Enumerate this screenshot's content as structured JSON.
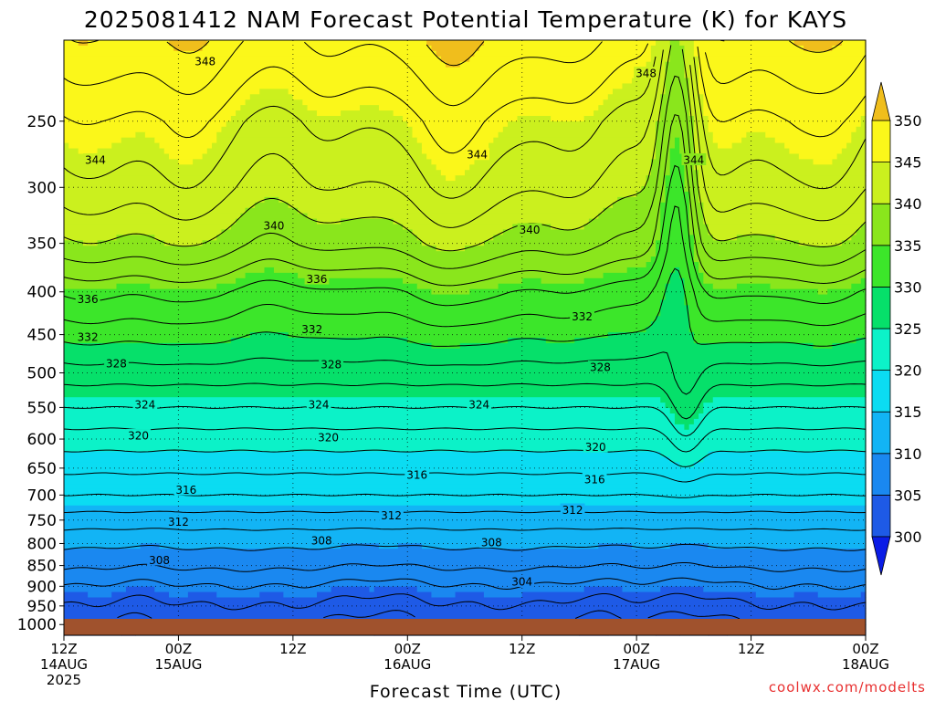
{
  "colors": {
    "ground": "#a0522d",
    "grid": "#000000",
    "contour": "#000000",
    "credit": "#e83030"
  },
  "chart_data": {
    "type": "heatmap",
    "title": "2025081412 NAM Forecast Potential Temperature (K) for KAYS",
    "xlabel": "Forecast Time (UTC)",
    "ylabel": "",
    "credit": "coolwx.com/modelts",
    "x_ticks": [
      {
        "t": 0,
        "line1": "12Z",
        "line2": "14AUG",
        "line3": "2025"
      },
      {
        "t": 12,
        "line1": "00Z",
        "line2": "15AUG",
        "line3": ""
      },
      {
        "t": 24,
        "line1": "12Z",
        "line2": "",
        "line3": ""
      },
      {
        "t": 36,
        "line1": "00Z",
        "line2": "16AUG",
        "line3": ""
      },
      {
        "t": 48,
        "line1": "12Z",
        "line2": "",
        "line3": ""
      },
      {
        "t": 60,
        "line1": "00Z",
        "line2": "17AUG",
        "line3": ""
      },
      {
        "t": 72,
        "line1": "12Z",
        "line2": "",
        "line3": ""
      },
      {
        "t": 84,
        "line1": "00Z",
        "line2": "18AUG",
        "line3": ""
      }
    ],
    "xlim": [
      0,
      84
    ],
    "y_ticks": [
      250,
      300,
      350,
      400,
      450,
      500,
      550,
      600,
      650,
      700,
      750,
      800,
      850,
      900,
      950,
      1000
    ],
    "ylim_hPa": [
      200,
      1030
    ],
    "y_scale": "log-pressure",
    "grid": true,
    "colorbar": {
      "levels": [
        300,
        305,
        310,
        315,
        320,
        325,
        330,
        335,
        340,
        345,
        350
      ],
      "colors": [
        "#0a1ce6",
        "#1e5ae6",
        "#1a88f0",
        "#12b4f5",
        "#0bdcf2",
        "#0cf2c8",
        "#06e06a",
        "#3ce62a",
        "#8ae61c",
        "#cbf01e",
        "#fbf71a",
        "#f0be1c"
      ],
      "extend": "both"
    },
    "profile": {
      "pressure_hPa": [
        1000,
        950,
        900,
        850,
        800,
        750,
        700,
        650,
        600,
        550,
        500,
        450,
        400,
        350,
        300,
        250,
        200
      ],
      "theta_K": [
        302,
        304,
        306,
        308.5,
        310.5,
        313,
        316,
        318.5,
        321,
        324,
        327,
        330.5,
        334,
        339,
        342.5,
        345,
        349
      ]
    },
    "contour_labels": [
      {
        "text": "348",
        "t": 14.8,
        "p": 212
      },
      {
        "text": "348",
        "t": 61.0,
        "p": 219
      },
      {
        "text": "344",
        "t": 3.3,
        "p": 278
      },
      {
        "text": "344",
        "t": 43.3,
        "p": 274
      },
      {
        "text": "344",
        "t": 66.0,
        "p": 278
      },
      {
        "text": "340",
        "t": 22.0,
        "p": 333
      },
      {
        "text": "340",
        "t": 48.8,
        "p": 337
      },
      {
        "text": "336",
        "t": 26.5,
        "p": 386
      },
      {
        "text": "336",
        "t": 2.5,
        "p": 408
      },
      {
        "text": "332",
        "t": 26.0,
        "p": 443
      },
      {
        "text": "332",
        "t": 54.3,
        "p": 428
      },
      {
        "text": "332",
        "t": 2.5,
        "p": 453
      },
      {
        "text": "328",
        "t": 28.0,
        "p": 488
      },
      {
        "text": "328",
        "t": 56.2,
        "p": 492
      },
      {
        "text": "328",
        "t": 5.5,
        "p": 487
      },
      {
        "text": "324",
        "t": 8.5,
        "p": 545
      },
      {
        "text": "324",
        "t": 26.7,
        "p": 545
      },
      {
        "text": "324",
        "t": 43.5,
        "p": 545
      },
      {
        "text": "320",
        "t": 7.8,
        "p": 594
      },
      {
        "text": "320",
        "t": 27.7,
        "p": 597
      },
      {
        "text": "320",
        "t": 55.7,
        "p": 613
      },
      {
        "text": "316",
        "t": 12.8,
        "p": 690
      },
      {
        "text": "316",
        "t": 37.0,
        "p": 662
      },
      {
        "text": "316",
        "t": 55.6,
        "p": 670
      },
      {
        "text": "312",
        "t": 12.0,
        "p": 753
      },
      {
        "text": "312",
        "t": 34.3,
        "p": 740
      },
      {
        "text": "312",
        "t": 53.3,
        "p": 729
      },
      {
        "text": "308",
        "t": 27.0,
        "p": 793
      },
      {
        "text": "308",
        "t": 44.8,
        "p": 797
      },
      {
        "text": "308",
        "t": 10.0,
        "p": 837
      },
      {
        "text": "304",
        "t": 48.0,
        "p": 888
      }
    ]
  }
}
